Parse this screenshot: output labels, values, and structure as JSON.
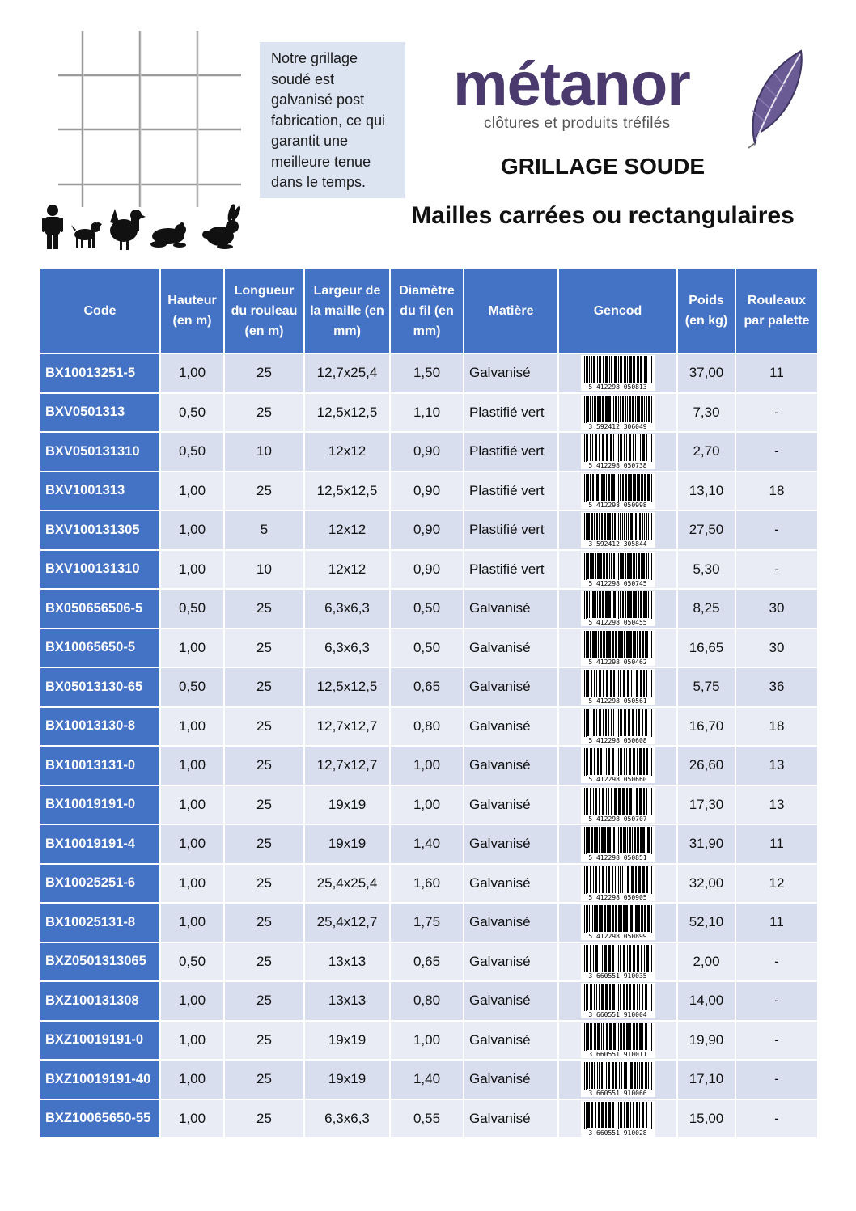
{
  "note_text": "Notre grillage soudé est galvanisé post fabrication, ce qui garantit une meilleure tenue dans le temps.",
  "logo": {
    "name": "métanor",
    "tagline": "clôtures et produits tréfilés",
    "color": "#4a3a6e"
  },
  "title": "GRILLAGE SOUDE",
  "subtitle": "Mailles carrées ou rectangulaires",
  "icons": [
    "wire-mesh-icon",
    "person-icon",
    "dog-icon",
    "hen-icon",
    "frog-icon",
    "rabbit-icon",
    "feather-icon"
  ],
  "colors": {
    "header_bg": "#4472c4",
    "row_odd": "#d9deef",
    "row_even": "#e9ecf5"
  },
  "table": {
    "headers": [
      "Code",
      "Hauteur (en m)",
      "Longueur du rouleau (en m)",
      "Largeur de la maille (en mm)",
      "Diamètre du fil (en mm)",
      "Matière",
      "Gencod",
      "Poids (en kg)",
      "Rouleaux par palette"
    ],
    "rows": [
      {
        "code": "BX10013251-5",
        "hauteur": "1,00",
        "longueur": "25",
        "largeur": "12,7x25,4",
        "diametre": "1,50",
        "matiere": "Galvanisé",
        "gencod": "5 412298 050813",
        "poids": "37,00",
        "rouleaux": "11"
      },
      {
        "code": "BXV0501313",
        "hauteur": "0,50",
        "longueur": "25",
        "largeur": "12,5x12,5",
        "diametre": "1,10",
        "matiere": "Plastifié vert",
        "gencod": "3 592412 306049",
        "poids": "7,30",
        "rouleaux": "-"
      },
      {
        "code": "BXV050131310",
        "hauteur": "0,50",
        "longueur": "10",
        "largeur": "12x12",
        "diametre": "0,90",
        "matiere": "Plastifié vert",
        "gencod": "5 412298 050738",
        "poids": "2,70",
        "rouleaux": "-"
      },
      {
        "code": "BXV1001313",
        "hauteur": "1,00",
        "longueur": "25",
        "largeur": "12,5x12,5",
        "diametre": "0,90",
        "matiere": "Plastifié vert",
        "gencod": "5 412298 050998",
        "poids": "13,10",
        "rouleaux": "18"
      },
      {
        "code": "BXV100131305",
        "hauteur": "1,00",
        "longueur": "5",
        "largeur": "12x12",
        "diametre": "0,90",
        "matiere": "Plastifié vert",
        "gencod": "3 592412 305844",
        "poids": "27,50",
        "rouleaux": "-"
      },
      {
        "code": "BXV100131310",
        "hauteur": "1,00",
        "longueur": "10",
        "largeur": "12x12",
        "diametre": "0,90",
        "matiere": "Plastifié vert",
        "gencod": "5 412298 050745",
        "poids": "5,30",
        "rouleaux": "-"
      },
      {
        "code": "BX050656506-5",
        "hauteur": "0,50",
        "longueur": "25",
        "largeur": "6,3x6,3",
        "diametre": "0,50",
        "matiere": "Galvanisé",
        "gencod": "5 412298 050455",
        "poids": "8,25",
        "rouleaux": "30"
      },
      {
        "code": "BX10065650-5",
        "hauteur": "1,00",
        "longueur": "25",
        "largeur": "6,3x6,3",
        "diametre": "0,50",
        "matiere": "Galvanisé",
        "gencod": "5 412298 050462",
        "poids": "16,65",
        "rouleaux": "30"
      },
      {
        "code": "BX05013130-65",
        "hauteur": "0,50",
        "longueur": "25",
        "largeur": "12,5x12,5",
        "diametre": "0,65",
        "matiere": "Galvanisé",
        "gencod": "5 412298 050561",
        "poids": "5,75",
        "rouleaux": "36"
      },
      {
        "code": "BX10013130-8",
        "hauteur": "1,00",
        "longueur": "25",
        "largeur": "12,7x12,7",
        "diametre": "0,80",
        "matiere": "Galvanisé",
        "gencod": "5 412298 050608",
        "poids": "16,70",
        "rouleaux": "18"
      },
      {
        "code": "BX10013131-0",
        "hauteur": "1,00",
        "longueur": "25",
        "largeur": "12,7x12,7",
        "diametre": "1,00",
        "matiere": "Galvanisé",
        "gencod": "5 412298 050660",
        "poids": "26,60",
        "rouleaux": "13"
      },
      {
        "code": "BX10019191-0",
        "hauteur": "1,00",
        "longueur": "25",
        "largeur": "19x19",
        "diametre": "1,00",
        "matiere": "Galvanisé",
        "gencod": "5 412298 050707",
        "poids": "17,30",
        "rouleaux": "13"
      },
      {
        "code": "BX10019191-4",
        "hauteur": "1,00",
        "longueur": "25",
        "largeur": "19x19",
        "diametre": "1,40",
        "matiere": "Galvanisé",
        "gencod": "5 412298 050851",
        "poids": "31,90",
        "rouleaux": "11"
      },
      {
        "code": "BX10025251-6",
        "hauteur": "1,00",
        "longueur": "25",
        "largeur": "25,4x25,4",
        "diametre": "1,60",
        "matiere": "Galvanisé",
        "gencod": "5 412298 050905",
        "poids": "32,00",
        "rouleaux": "12"
      },
      {
        "code": "BX10025131-8",
        "hauteur": "1,00",
        "longueur": "25",
        "largeur": "25,4x12,7",
        "diametre": "1,75",
        "matiere": "Galvanisé",
        "gencod": "5 412298 050899",
        "poids": "52,10",
        "rouleaux": "11"
      },
      {
        "code": "BXZ0501313065",
        "hauteur": "0,50",
        "longueur": "25",
        "largeur": "13x13",
        "diametre": "0,65",
        "matiere": "Galvanisé",
        "gencod": "3 660551 910035",
        "poids": "2,00",
        "rouleaux": "-"
      },
      {
        "code": "BXZ100131308",
        "hauteur": "1,00",
        "longueur": "25",
        "largeur": "13x13",
        "diametre": "0,80",
        "matiere": "Galvanisé",
        "gencod": "3 660551 910004",
        "poids": "14,00",
        "rouleaux": "-"
      },
      {
        "code": "BXZ10019191-0",
        "hauteur": "1,00",
        "longueur": "25",
        "largeur": "19x19",
        "diametre": "1,00",
        "matiere": "Galvanisé",
        "gencod": "3 660551 910011",
        "poids": "19,90",
        "rouleaux": "-"
      },
      {
        "code": "BXZ10019191-40",
        "hauteur": "1,00",
        "longueur": "25",
        "largeur": "19x19",
        "diametre": "1,40",
        "matiere": "Galvanisé",
        "gencod": "3 660551 910066",
        "poids": "17,10",
        "rouleaux": "-"
      },
      {
        "code": "BXZ10065650-55",
        "hauteur": "1,00",
        "longueur": "25",
        "largeur": "6,3x6,3",
        "diametre": "0,55",
        "matiere": "Galvanisé",
        "gencod": "3 660551 910028",
        "poids": "15,00",
        "rouleaux": "-"
      }
    ]
  }
}
